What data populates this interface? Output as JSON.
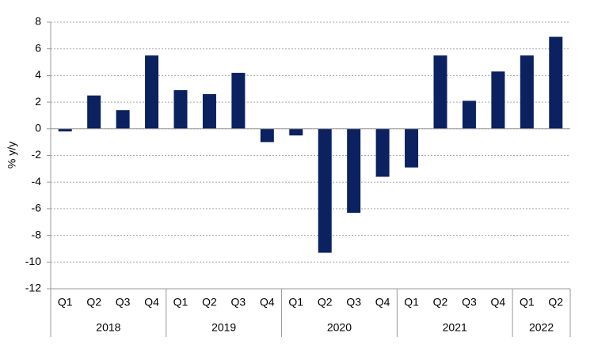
{
  "chart_data": {
    "type": "bar",
    "y_label": "% y/y",
    "color": "#0b2160",
    "groups": [
      {
        "label": "2018",
        "categories": [
          "Q1",
          "Q2",
          "Q3",
          "Q4"
        ]
      },
      {
        "label": "2019",
        "categories": [
          "Q1",
          "Q2",
          "Q3",
          "Q4"
        ]
      },
      {
        "label": "2020",
        "categories": [
          "Q1",
          "Q2",
          "Q3",
          "Q4"
        ]
      },
      {
        "label": "2021",
        "categories": [
          "Q1",
          "Q2",
          "Q3",
          "Q4"
        ]
      },
      {
        "label": "2022",
        "categories": [
          "Q1",
          "Q2"
        ]
      }
    ],
    "values": [
      -0.2,
      2.5,
      1.4,
      5.5,
      2.9,
      2.6,
      4.2,
      -1.0,
      -0.5,
      -9.3,
      -6.3,
      -3.6,
      -2.9,
      5.5,
      2.1,
      4.3,
      5.5,
      6.9
    ],
    "ylim": [
      -12,
      8
    ],
    "yticks": [
      -12,
      -10,
      -8,
      -6,
      -4,
      -2,
      0,
      2,
      4,
      6,
      8
    ],
    "grid": true
  }
}
